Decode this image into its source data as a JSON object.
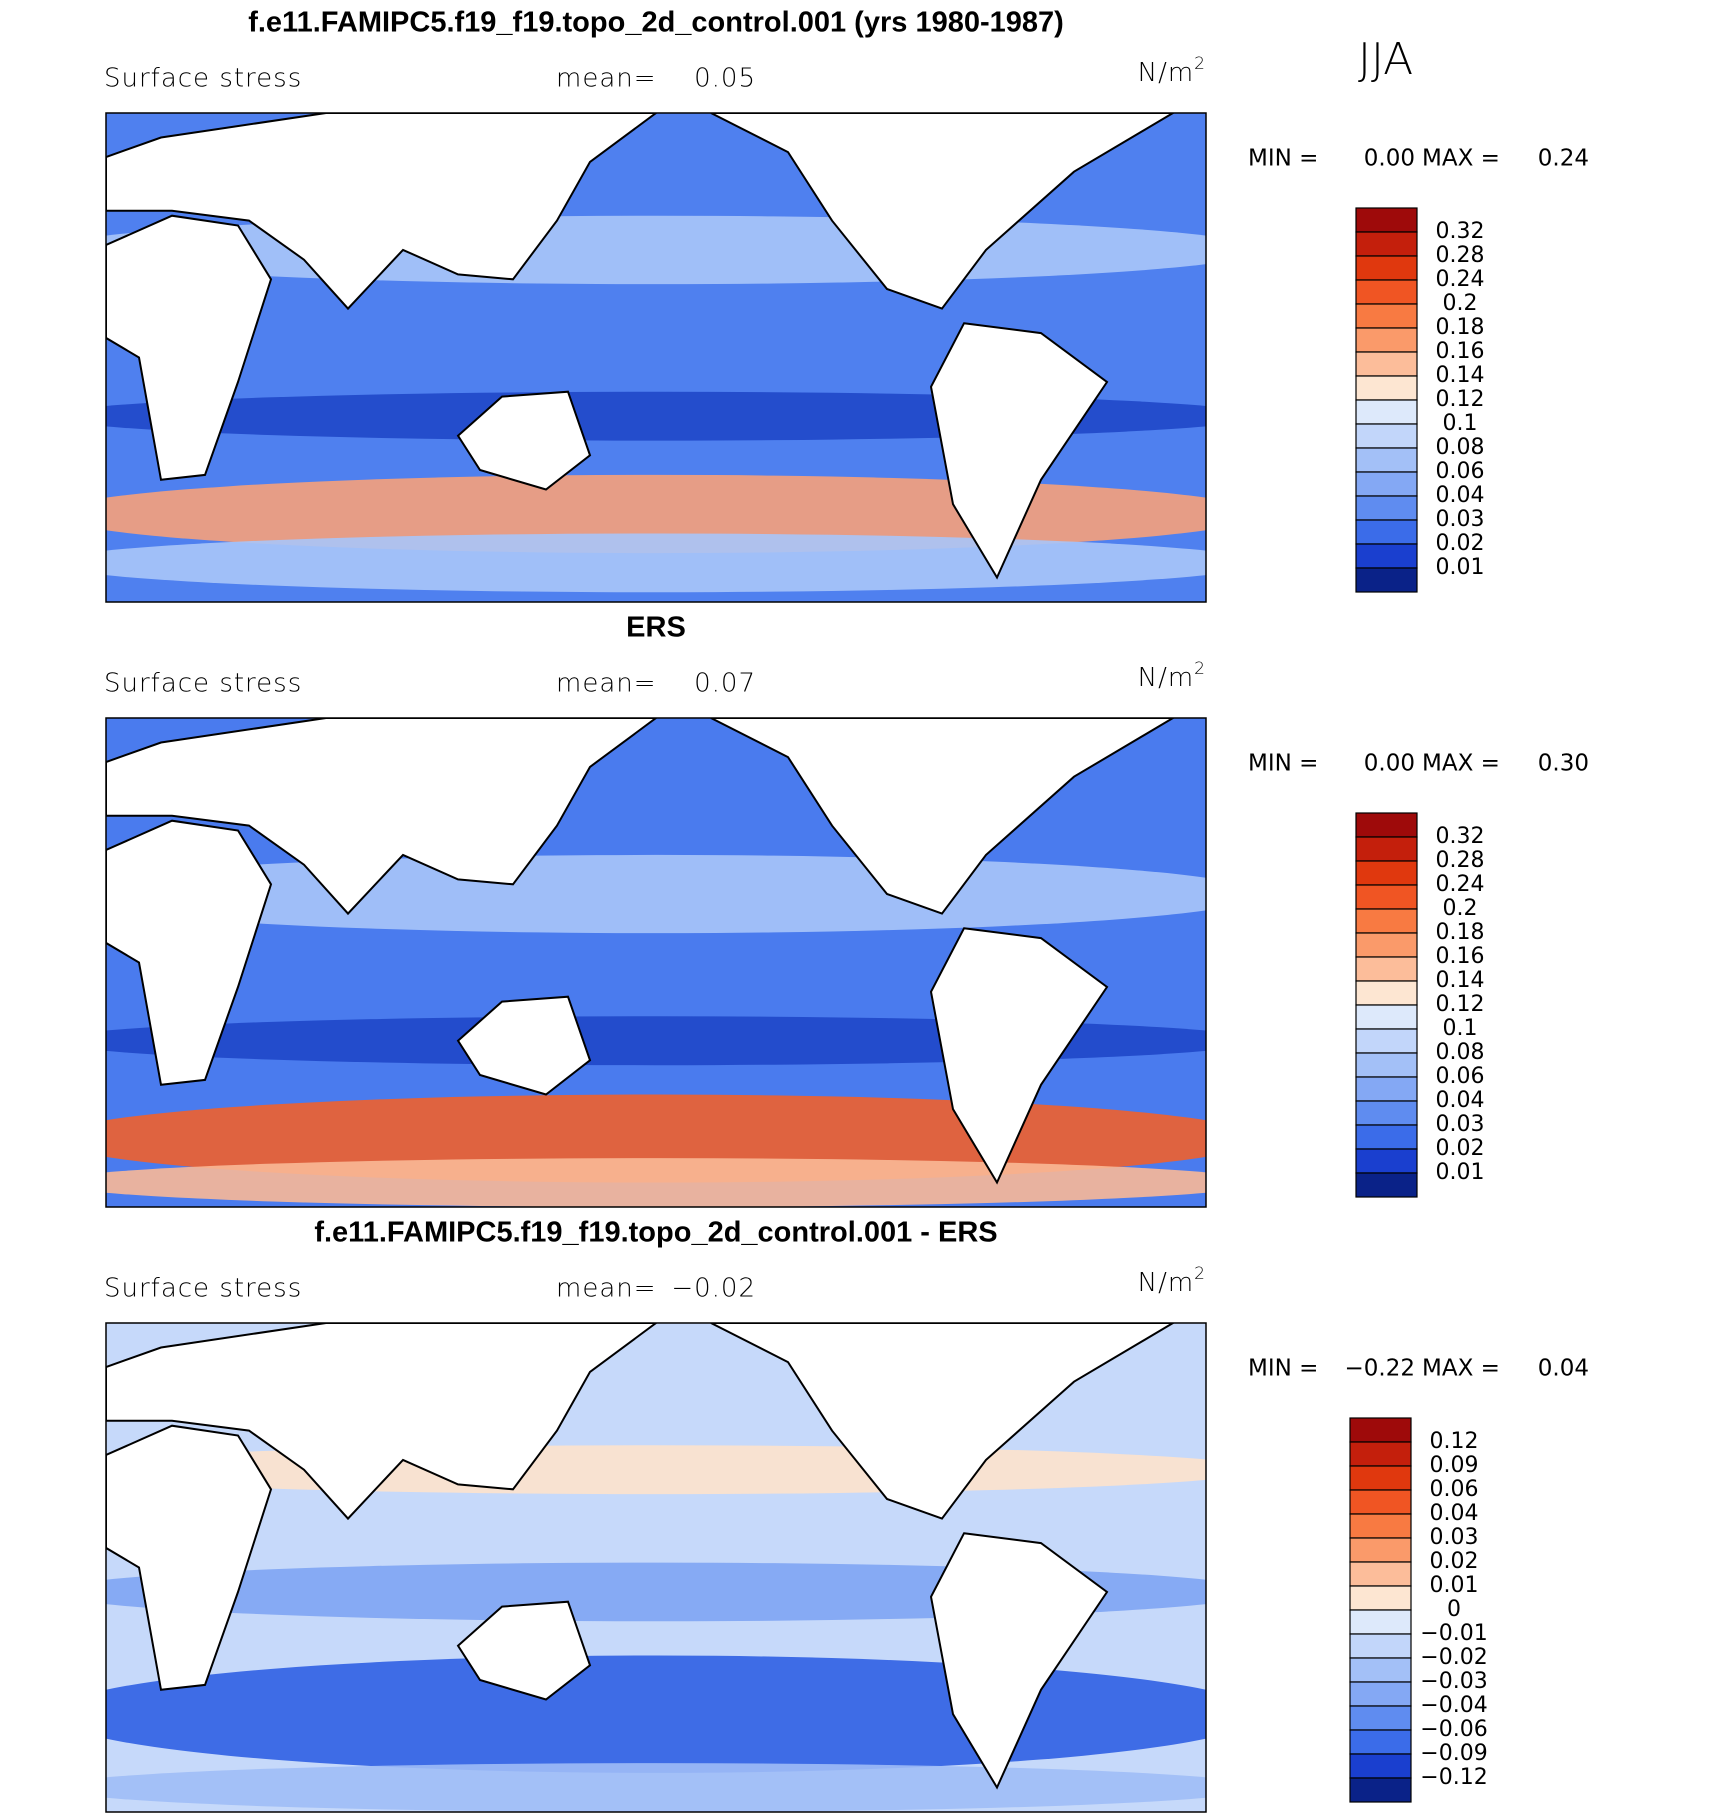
{
  "season": "JJA",
  "panels": [
    {
      "title": "f.e11.FAMIPC5.f19_f19.topo_2d_control.001 (yrs 1980-1987)",
      "variable": "Surface stress",
      "mean_label": "mean=",
      "mean": 0.05,
      "units": "N/m",
      "units_exponent": "2",
      "min_label": "MIN =",
      "min": {
        "value": 0,
        "label": "0.00"
      },
      "max_label": "MAX =",
      "max": 0.24,
      "colorbar": {
        "levels": [
          0.32,
          0.28,
          0.24,
          0.2,
          0.18,
          0.16,
          0.14,
          0.12,
          0.1,
          0.08,
          0.06,
          0.04,
          0.03,
          0.02,
          0.01
        ],
        "colors": [
          "#9e0a0a",
          "#c41f0c",
          "#e0380e",
          "#f05523",
          "#f87a42",
          "#fa9a6a",
          "#fcbd9a",
          "#fde6d2",
          "#dde9fb",
          "#c2d6fa",
          "#a3c0f7",
          "#84a8f4",
          "#5f8cf0",
          "#3b6ce9",
          "#1a3fcf",
          "#0a2288"
        ]
      }
    },
    {
      "title": "ERS",
      "variable": "Surface stress",
      "mean_label": "mean=",
      "mean": 0.07,
      "units": "N/m",
      "units_exponent": "2",
      "min_label": "MIN =",
      "min": {
        "value": 0,
        "label": "0.00"
      },
      "max_label": "MAX =",
      "max": {
        "value": 0.3,
        "label": "0.30"
      },
      "colorbar": {
        "levels": [
          0.32,
          0.28,
          0.24,
          0.2,
          0.18,
          0.16,
          0.14,
          0.12,
          0.1,
          0.08,
          0.06,
          0.04,
          0.03,
          0.02,
          0.01
        ],
        "colors": [
          "#9e0a0a",
          "#c41f0c",
          "#e0380e",
          "#f05523",
          "#f87a42",
          "#fa9a6a",
          "#fcbd9a",
          "#fde6d2",
          "#dde9fb",
          "#c2d6fa",
          "#a3c0f7",
          "#84a8f4",
          "#5f8cf0",
          "#3b6ce9",
          "#1a3fcf",
          "#0a2288"
        ]
      }
    },
    {
      "title": "f.e11.FAMIPC5.f19_f19.topo_2d_control.001 - ERS",
      "variable": "Surface stress",
      "mean_label": "mean=",
      "mean": {
        "value": -0.02,
        "label": "−0.02"
      },
      "units": "N/m",
      "units_exponent": "2",
      "min_label": "MIN =",
      "min": {
        "value": -0.22,
        "label": "−0.22"
      },
      "max_label": "MAX =",
      "max": 0.04,
      "colorbar": {
        "levels": [
          0.12,
          0.09,
          0.06,
          0.04,
          0.03,
          0.02,
          0.01,
          0,
          {
            "value": -0.01,
            "label": "−0.01"
          },
          {
            "value": -0.02,
            "label": "−0.02"
          },
          {
            "value": -0.03,
            "label": "−0.03"
          },
          {
            "value": -0.04,
            "label": "−0.04"
          },
          {
            "value": -0.06,
            "label": "−0.06"
          },
          {
            "value": -0.09,
            "label": "−0.09"
          },
          {
            "value": -0.12,
            "label": "−0.12"
          }
        ],
        "colors": [
          "#9e0a0a",
          "#c41f0c",
          "#e0380e",
          "#f05523",
          "#f87a42",
          "#fa9a6a",
          "#fcbd9a",
          "#fde6d2",
          "#dde9fb",
          "#c2d6fa",
          "#a3c0f7",
          "#84a8f4",
          "#5f8cf0",
          "#3b6ce9",
          "#1a3fcf",
          "#0a2288"
        ]
      }
    }
  ]
}
